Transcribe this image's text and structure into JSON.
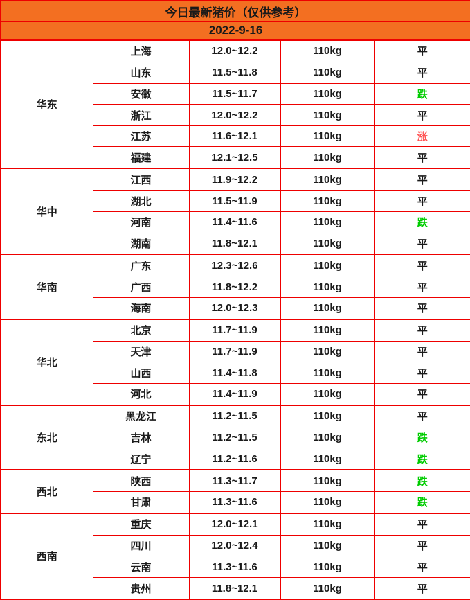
{
  "header": {
    "title": "今日最新猪价（仅供参考）",
    "date": "2022-9-16"
  },
  "colors": {
    "header_bg": "#f36f21",
    "border": "#ee0000",
    "text": "#1a1a1a",
    "trend_up": "#ff5050",
    "trend_down": "#00cc00"
  },
  "chart_data": {
    "type": "table",
    "title": "今日最新猪价（仅供参考）",
    "date": "2022-9-16",
    "groups": [
      {
        "region": "华东",
        "rows": [
          {
            "province": "上海",
            "price": "12.0~12.2",
            "weight": "110kg",
            "trend": "平"
          },
          {
            "province": "山东",
            "price": "11.5~11.8",
            "weight": "110kg",
            "trend": "平"
          },
          {
            "province": "安徽",
            "price": "11.5~11.7",
            "weight": "110kg",
            "trend": "跌"
          },
          {
            "province": "浙江",
            "price": "12.0~12.2",
            "weight": "110kg",
            "trend": "平"
          },
          {
            "province": "江苏",
            "price": "11.6~12.1",
            "weight": "110kg",
            "trend": "涨"
          },
          {
            "province": "福建",
            "price": "12.1~12.5",
            "weight": "110kg",
            "trend": "平"
          }
        ]
      },
      {
        "region": "华中",
        "rows": [
          {
            "province": "江西",
            "price": "11.9~12.2",
            "weight": "110kg",
            "trend": "平"
          },
          {
            "province": "湖北",
            "price": "11.5~11.9",
            "weight": "110kg",
            "trend": "平"
          },
          {
            "province": "河南",
            "price": "11.4~11.6",
            "weight": "110kg",
            "trend": "跌"
          },
          {
            "province": "湖南",
            "price": "11.8~12.1",
            "weight": "110kg",
            "trend": "平"
          }
        ]
      },
      {
        "region": "华南",
        "rows": [
          {
            "province": "广东",
            "price": "12.3~12.6",
            "weight": "110kg",
            "trend": "平"
          },
          {
            "province": "广西",
            "price": "11.8~12.2",
            "weight": "110kg",
            "trend": "平"
          },
          {
            "province": "海南",
            "price": "12.0~12.3",
            "weight": "110kg",
            "trend": "平"
          }
        ]
      },
      {
        "region": "华北",
        "rows": [
          {
            "province": "北京",
            "price": "11.7~11.9",
            "weight": "110kg",
            "trend": "平"
          },
          {
            "province": "天津",
            "price": "11.7~11.9",
            "weight": "110kg",
            "trend": "平"
          },
          {
            "province": "山西",
            "price": "11.4~11.8",
            "weight": "110kg",
            "trend": "平"
          },
          {
            "province": "河北",
            "price": "11.4~11.9",
            "weight": "110kg",
            "trend": "平"
          }
        ]
      },
      {
        "region": "东北",
        "rows": [
          {
            "province": "黑龙江",
            "price": "11.2~11.5",
            "weight": "110kg",
            "trend": "平"
          },
          {
            "province": "吉林",
            "price": "11.2~11.5",
            "weight": "110kg",
            "trend": "跌"
          },
          {
            "province": "辽宁",
            "price": "11.2~11.6",
            "weight": "110kg",
            "trend": "跌"
          }
        ]
      },
      {
        "region": "西北",
        "rows": [
          {
            "province": "陕西",
            "price": "11.3~11.7",
            "weight": "110kg",
            "trend": "跌"
          },
          {
            "province": "甘肃",
            "price": "11.3~11.6",
            "weight": "110kg",
            "trend": "跌"
          }
        ]
      },
      {
        "region": "西南",
        "rows": [
          {
            "province": "重庆",
            "price": "12.0~12.1",
            "weight": "110kg",
            "trend": "平"
          },
          {
            "province": "四川",
            "price": "12.0~12.4",
            "weight": "110kg",
            "trend": "平"
          },
          {
            "province": "云南",
            "price": "11.3~11.6",
            "weight": "110kg",
            "trend": "平"
          },
          {
            "province": "贵州",
            "price": "11.8~12.1",
            "weight": "110kg",
            "trend": "平"
          }
        ]
      }
    ]
  }
}
